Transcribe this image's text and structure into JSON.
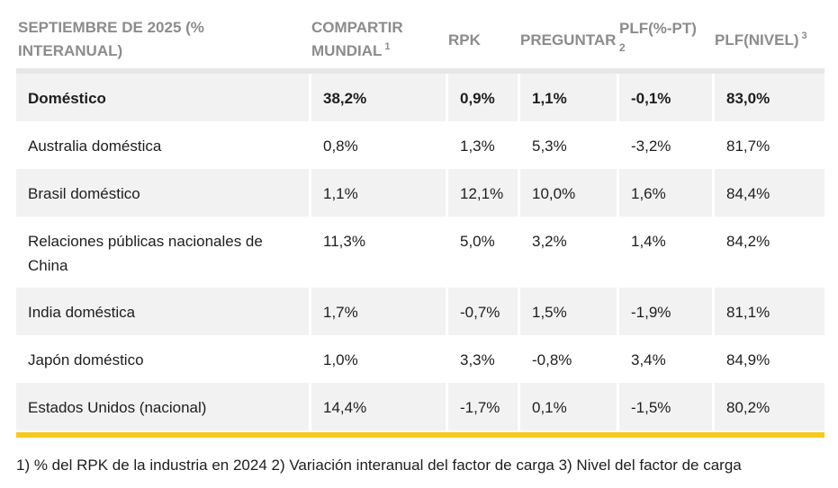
{
  "headers": {
    "col1": "SEPTIEMBRE DE 2025 (% INTERANUAL)",
    "col2": "COMPARTIR MUNDIAL",
    "col2_sup": "1",
    "col3": "RPK",
    "col4": "PREGUNTAR",
    "col5": "PLF(%-PT)",
    "col5_sup": "2",
    "col6": "PLF(NIVEL)",
    "col6_sup": "3"
  },
  "rows": [
    {
      "name": "Doméstico",
      "share": "38,2%",
      "rpk": "0,9%",
      "ask": "1,1%",
      "plf_pt": "-0,1%",
      "plf_level": "83,0%"
    },
    {
      "name": "Australia doméstica",
      "share": "0,8%",
      "rpk": "1,3%",
      "ask": "5,3%",
      "plf_pt": "-3,2%",
      "plf_level": "81,7%"
    },
    {
      "name": "Brasil doméstico",
      "share": "1,1%",
      "rpk": "12,1%",
      "ask": "10,0%",
      "plf_pt": "1,6%",
      "plf_level": "84,4%"
    },
    {
      "name": "Relaciones públicas nacionales de China",
      "share": "11,3%",
      "rpk": "5,0%",
      "ask": "3,2%",
      "plf_pt": "1,4%",
      "plf_level": "84,2%"
    },
    {
      "name": "India doméstica",
      "share": "1,7%",
      "rpk": "-0,7%",
      "ask": "1,5%",
      "plf_pt": "-1,9%",
      "plf_level": "81,1%"
    },
    {
      "name": "Japón doméstico",
      "share": "1,0%",
      "rpk": "3,3%",
      "ask": "-0,8%",
      "plf_pt": "3,4%",
      "plf_level": "84,9%"
    },
    {
      "name": "Estados Unidos (nacional)",
      "share": "14,4%",
      "rpk": "-1,7%",
      "ask": "0,1%",
      "plf_pt": "-1,5%",
      "plf_level": "80,2%"
    }
  ],
  "footnote": "1) % del RPK de la industria en 2024 2) Variación interanual del factor de carga 3) Nivel del factor de carga",
  "colors": {
    "header_text": "#8c8c8c",
    "shaded_row": "#f2f2f2",
    "accent_bar": "#f6c91a"
  }
}
